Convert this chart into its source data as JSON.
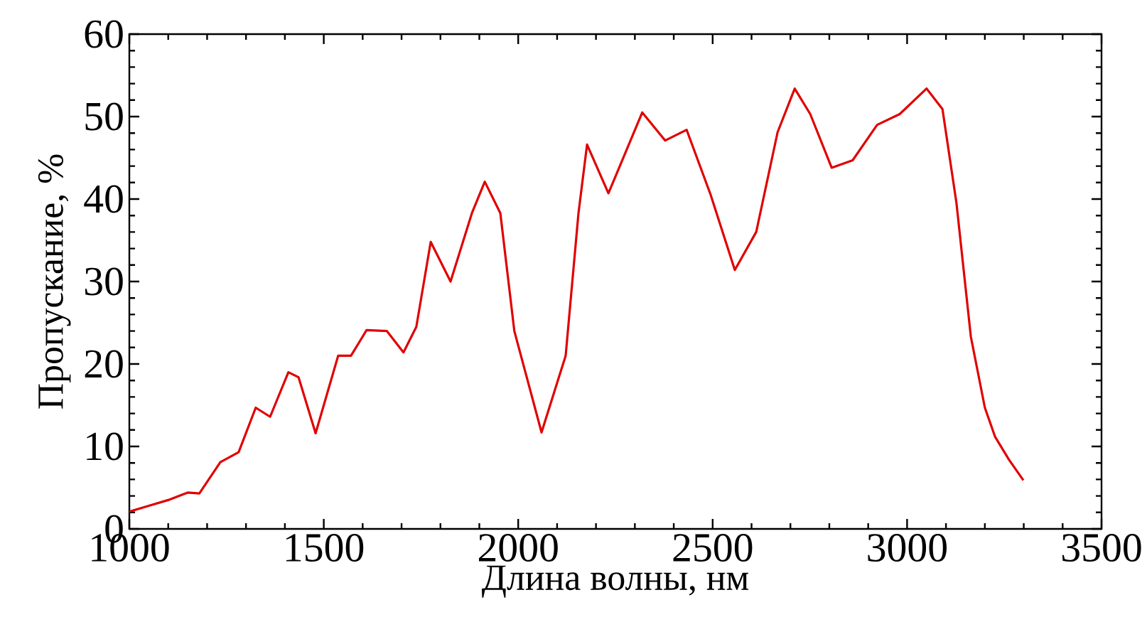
{
  "chart_data": {
    "type": "line",
    "xlabel": "Длина волны, нм",
    "ylabel": "Пропускание, %",
    "xlim": [
      1000,
      3500
    ],
    "ylim": [
      0,
      60
    ],
    "xticks": [
      1000,
      1500,
      2000,
      2500,
      3000,
      3500
    ],
    "yticks": [
      0,
      10,
      20,
      30,
      40,
      50,
      60
    ],
    "grid": false,
    "marker": "none",
    "line_style": "solid",
    "series": [
      {
        "color": "#e00000",
        "x": [
          1000,
          1050,
          1100,
          1150,
          1180,
          1234,
          1281,
          1325,
          1362,
          1409,
          1435,
          1479,
          1537,
          1570,
          1610,
          1662,
          1705,
          1738,
          1775,
          1826,
          1881,
          1914,
          1954,
          1990,
          2060,
          2122,
          2155,
          2177,
          2232,
          2319,
          2378,
          2433,
          2495,
          2557,
          2612,
          2667,
          2711,
          2751,
          2806,
          2860,
          2923,
          2981,
          3050,
          3091,
          3127,
          3164,
          3200,
          3226,
          3262,
          3299
        ],
        "values": [
          2.1,
          2.8,
          3.5,
          4.4,
          4.3,
          8.1,
          9.3,
          14.7,
          13.6,
          19.0,
          18.4,
          11.6,
          21.0,
          21.0,
          24.1,
          24.0,
          21.4,
          24.5,
          34.8,
          30.0,
          38.3,
          42.1,
          38.3,
          24.0,
          11.7,
          21.0,
          38.3,
          46.6,
          40.7,
          50.5,
          47.1,
          48.4,
          40.5,
          31.4,
          36.0,
          48.1,
          53.4,
          50.3,
          43.8,
          44.7,
          49.0,
          50.3,
          53.4,
          50.9,
          39.5,
          23.3,
          14.7,
          11.2,
          8.4,
          5.9
        ]
      }
    ]
  }
}
